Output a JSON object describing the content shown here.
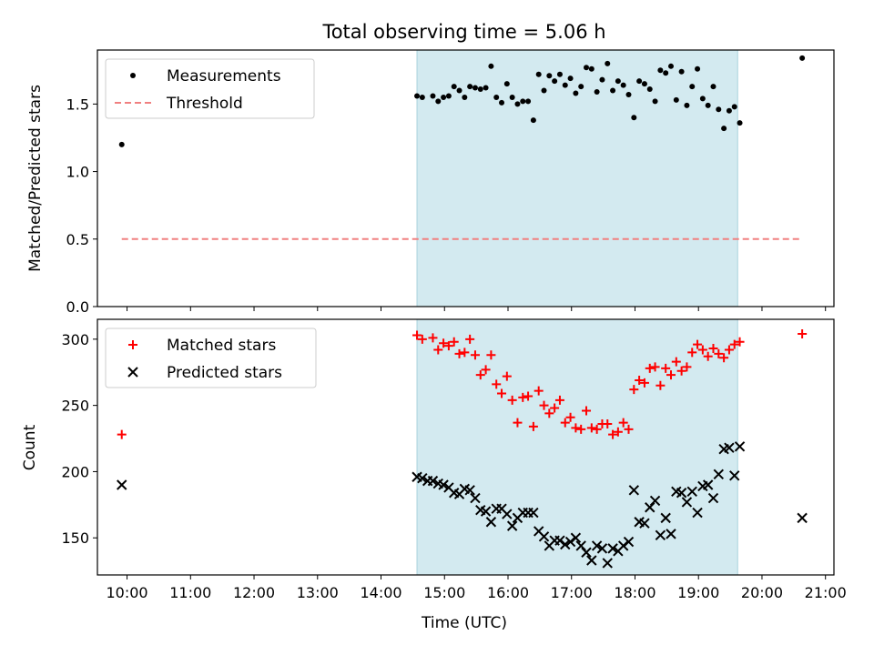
{
  "figure": {
    "title": "Total observing time = 5.06 h",
    "xlabel": "Time (UTC)"
  },
  "colors": {
    "shade": "#d3eaf0",
    "matched": "#ff0000",
    "predicted": "#000000",
    "threshold": "#f08080",
    "measurement": "#000000"
  },
  "chart_data": [
    {
      "type": "scatter",
      "title": "Total observing time = 5.06 h",
      "xlabel": "",
      "ylabel": "Matched/Predicted stars",
      "ylim": [
        0,
        1.9
      ],
      "xlim": [
        "09:32",
        "21:08"
      ],
      "yticks": [
        0.0,
        0.5,
        1.0,
        1.5
      ],
      "ytick_labels": [
        "0.0",
        "0.5",
        "1.0",
        "1.5"
      ],
      "legend_loc": "upper left",
      "shaded_interval": [
        "14:34",
        "19:37"
      ],
      "series": [
        {
          "name": "Measurements",
          "marker": "dot",
          "points": [
            [
              "09:55",
              1.2
            ],
            [
              "14:34",
              1.56
            ],
            [
              "14:39",
              1.55
            ],
            [
              "14:49",
              1.56
            ],
            [
              "14:54",
              1.52
            ],
            [
              "14:59",
              1.55
            ],
            [
              "15:04",
              1.56
            ],
            [
              "15:09",
              1.63
            ],
            [
              "15:14",
              1.6
            ],
            [
              "15:19",
              1.55
            ],
            [
              "15:24",
              1.63
            ],
            [
              "15:29",
              1.62
            ],
            [
              "15:34",
              1.61
            ],
            [
              "15:39",
              1.62
            ],
            [
              "15:44",
              1.78
            ],
            [
              "15:49",
              1.55
            ],
            [
              "15:54",
              1.51
            ],
            [
              "15:59",
              1.65
            ],
            [
              "16:04",
              1.55
            ],
            [
              "16:09",
              1.5
            ],
            [
              "16:14",
              1.52
            ],
            [
              "16:19",
              1.52
            ],
            [
              "16:24",
              1.38
            ],
            [
              "16:29",
              1.72
            ],
            [
              "16:34",
              1.6
            ],
            [
              "16:39",
              1.71
            ],
            [
              "16:44",
              1.67
            ],
            [
              "16:49",
              1.72
            ],
            [
              "16:54",
              1.64
            ],
            [
              "16:59",
              1.69
            ],
            [
              "17:04",
              1.58
            ],
            [
              "17:09",
              1.63
            ],
            [
              "17:14",
              1.77
            ],
            [
              "17:19",
              1.76
            ],
            [
              "17:24",
              1.59
            ],
            [
              "17:29",
              1.68
            ],
            [
              "17:34",
              1.8
            ],
            [
              "17:39",
              1.6
            ],
            [
              "17:44",
              1.67
            ],
            [
              "17:49",
              1.64
            ],
            [
              "17:54",
              1.57
            ],
            [
              "17:59",
              1.4
            ],
            [
              "18:04",
              1.67
            ],
            [
              "18:09",
              1.65
            ],
            [
              "18:14",
              1.61
            ],
            [
              "18:19",
              1.52
            ],
            [
              "18:24",
              1.75
            ],
            [
              "18:29",
              1.73
            ],
            [
              "18:34",
              1.78
            ],
            [
              "18:39",
              1.53
            ],
            [
              "18:44",
              1.74
            ],
            [
              "18:49",
              1.49
            ],
            [
              "18:54",
              1.63
            ],
            [
              "18:59",
              1.76
            ],
            [
              "19:04",
              1.54
            ],
            [
              "19:09",
              1.49
            ],
            [
              "19:14",
              1.63
            ],
            [
              "19:19",
              1.46
            ],
            [
              "19:24",
              1.32
            ],
            [
              "19:29",
              1.45
            ],
            [
              "19:34",
              1.48
            ],
            [
              "19:39",
              1.36
            ],
            [
              "20:38",
              1.84
            ]
          ]
        },
        {
          "name": "Threshold",
          "style": "dashed",
          "points": [
            [
              "09:55",
              0.5
            ],
            [
              "20:38",
              0.5
            ]
          ]
        }
      ]
    },
    {
      "type": "scatter",
      "xlabel": "Time (UTC)",
      "ylabel": "Count",
      "ylim": [
        122,
        315
      ],
      "xlim": [
        "09:32",
        "21:08"
      ],
      "yticks": [
        150,
        200,
        250,
        300
      ],
      "ytick_labels": [
        "150",
        "200",
        "250",
        "300"
      ],
      "xtick_labels": [
        "10:00",
        "11:00",
        "12:00",
        "13:00",
        "14:00",
        "15:00",
        "16:00",
        "17:00",
        "18:00",
        "19:00",
        "20:00",
        "21:00"
      ],
      "legend_loc": "upper left",
      "shaded_interval": [
        "14:34",
        "19:37"
      ],
      "series": [
        {
          "name": "Matched stars",
          "marker": "plus",
          "points": [
            [
              "09:55",
              228
            ],
            [
              "14:34",
              303
            ],
            [
              "14:39",
              300
            ],
            [
              "14:49",
              301
            ],
            [
              "14:54",
              292
            ],
            [
              "14:59",
              297
            ],
            [
              "15:04",
              295
            ],
            [
              "15:09",
              298
            ],
            [
              "15:14",
              289
            ],
            [
              "15:19",
              290
            ],
            [
              "15:24",
              300
            ],
            [
              "15:29",
              288
            ],
            [
              "15:34",
              273
            ],
            [
              "15:39",
              277
            ],
            [
              "15:44",
              288
            ],
            [
              "15:49",
              266
            ],
            [
              "15:54",
              259
            ],
            [
              "15:59",
              272
            ],
            [
              "16:04",
              254
            ],
            [
              "16:09",
              237
            ],
            [
              "16:14",
              256
            ],
            [
              "16:19",
              257
            ],
            [
              "16:24",
              234
            ],
            [
              "16:29",
              261
            ],
            [
              "16:34",
              250
            ],
            [
              "16:39",
              244
            ],
            [
              "16:44",
              248
            ],
            [
              "16:49",
              254
            ],
            [
              "16:54",
              237
            ],
            [
              "16:59",
              241
            ],
            [
              "17:04",
              233
            ],
            [
              "17:09",
              232
            ],
            [
              "17:14",
              246
            ],
            [
              "17:19",
              233
            ],
            [
              "17:24",
              232
            ],
            [
              "17:29",
              236
            ],
            [
              "17:34",
              236
            ],
            [
              "17:39",
              228
            ],
            [
              "17:44",
              230
            ],
            [
              "17:49",
              237
            ],
            [
              "17:54",
              232
            ],
            [
              "17:59",
              262
            ],
            [
              "18:04",
              269
            ],
            [
              "18:09",
              267
            ],
            [
              "18:14",
              278
            ],
            [
              "18:19",
              279
            ],
            [
              "18:24",
              265
            ],
            [
              "18:29",
              278
            ],
            [
              "18:34",
              273
            ],
            [
              "18:39",
              283
            ],
            [
              "18:44",
              276
            ],
            [
              "18:49",
              279
            ],
            [
              "18:54",
              290
            ],
            [
              "18:59",
              296
            ],
            [
              "19:04",
              292
            ],
            [
              "19:09",
              287
            ],
            [
              "19:14",
              293
            ],
            [
              "19:19",
              289
            ],
            [
              "19:24",
              286
            ],
            [
              "19:29",
              292
            ],
            [
              "19:34",
              296
            ],
            [
              "19:39",
              298
            ],
            [
              "20:38",
              304
            ]
          ]
        },
        {
          "name": "Predicted stars",
          "marker": "x",
          "points": [
            [
              "09:55",
              190
            ],
            [
              "14:34",
              196
            ],
            [
              "14:39",
              195
            ],
            [
              "14:44",
              193
            ],
            [
              "14:49",
              193
            ],
            [
              "14:54",
              191
            ],
            [
              "14:59",
              190
            ],
            [
              "15:04",
              188
            ],
            [
              "15:09",
              184
            ],
            [
              "15:14",
              183
            ],
            [
              "15:19",
              187
            ],
            [
              "15:24",
              186
            ],
            [
              "15:29",
              180
            ],
            [
              "15:34",
              171
            ],
            [
              "15:39",
              170
            ],
            [
              "15:44",
              162
            ],
            [
              "15:49",
              172
            ],
            [
              "15:54",
              172
            ],
            [
              "15:59",
              168
            ],
            [
              "16:04",
              159
            ],
            [
              "16:09",
              165
            ],
            [
              "16:14",
              169
            ],
            [
              "16:19",
              169
            ],
            [
              "16:24",
              169
            ],
            [
              "16:29",
              155
            ],
            [
              "16:34",
              151
            ],
            [
              "16:39",
              144
            ],
            [
              "16:44",
              148
            ],
            [
              "16:49",
              148
            ],
            [
              "16:54",
              145
            ],
            [
              "16:59",
              147
            ],
            [
              "17:04",
              150
            ],
            [
              "17:09",
              144
            ],
            [
              "17:14",
              139
            ],
            [
              "17:19",
              133
            ],
            [
              "17:24",
              144
            ],
            [
              "17:29",
              142
            ],
            [
              "17:34",
              131
            ],
            [
              "17:39",
              142
            ],
            [
              "17:44",
              140
            ],
            [
              "17:49",
              144
            ],
            [
              "17:54",
              147
            ],
            [
              "17:59",
              186
            ],
            [
              "18:04",
              162
            ],
            [
              "18:09",
              161
            ],
            [
              "18:14",
              173
            ],
            [
              "18:19",
              178
            ],
            [
              "18:24",
              152
            ],
            [
              "18:29",
              165
            ],
            [
              "18:34",
              153
            ],
            [
              "18:39",
              185
            ],
            [
              "18:44",
              184
            ],
            [
              "18:49",
              177
            ],
            [
              "18:54",
              185
            ],
            [
              "18:59",
              169
            ],
            [
              "19:04",
              189
            ],
            [
              "19:09",
              190
            ],
            [
              "19:14",
              180
            ],
            [
              "19:19",
              198
            ],
            [
              "19:24",
              217
            ],
            [
              "19:29",
              218
            ],
            [
              "19:34",
              197
            ],
            [
              "19:39",
              219
            ],
            [
              "20:38",
              165
            ]
          ]
        }
      ]
    }
  ]
}
